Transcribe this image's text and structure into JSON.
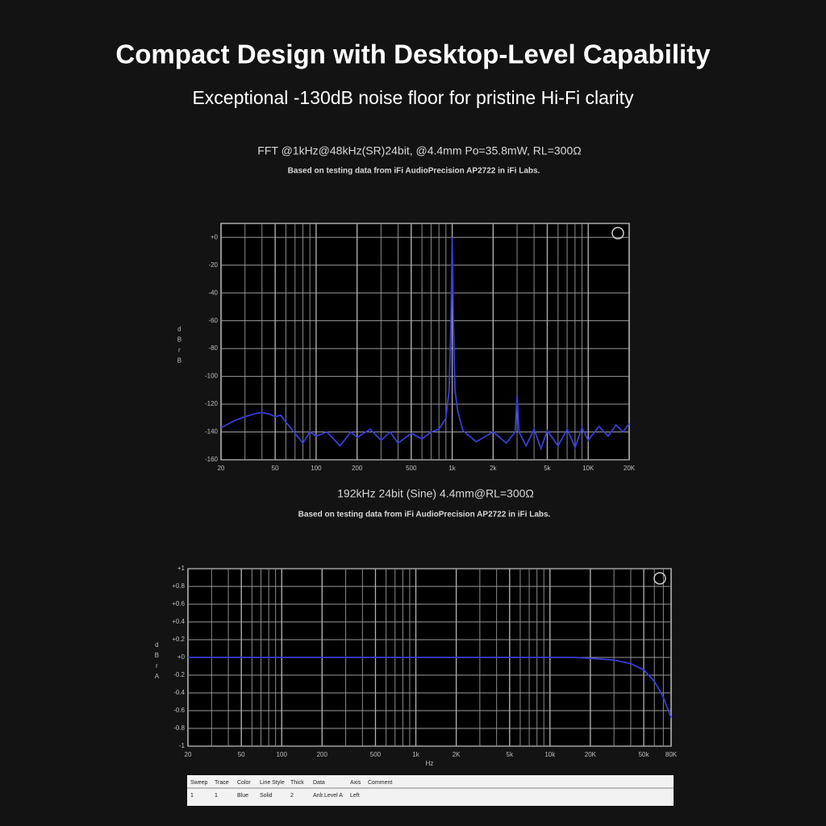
{
  "header": {
    "title": "Compact Design with Desktop-Level Capability",
    "subtitle": "Exceptional -130dB noise floor for pristine Hi-Fi clarity"
  },
  "chart_data": [
    {
      "type": "line",
      "title": "FFT @1kHz@48kHz(SR)24bit, @4.4mm Po=35.8mW, RL=300Ω",
      "subtitle": "Based on testing data from iFi AudioPrecision AP2722 in iFi Labs.",
      "y_label": "dBrB",
      "xscale": "log",
      "grid": true,
      "minor_grid": true,
      "color": "#3b3bd6",
      "xlim": [
        20,
        20000
      ],
      "ylim": [
        -160,
        10
      ],
      "xticks": [
        20,
        50,
        100,
        200,
        500,
        {
          "value": 1000,
          "label": "1k"
        },
        {
          "value": 2000,
          "label": "2k"
        },
        {
          "value": 5000,
          "label": "5k"
        },
        {
          "value": 10000,
          "label": "10K"
        },
        {
          "value": 20000,
          "label": "20K"
        }
      ],
      "yticks": [
        {
          "value": 0,
          "label": "+0"
        },
        -20,
        -40,
        -60,
        -80,
        -100,
        -120,
        -140,
        -160
      ],
      "x": [
        20,
        25,
        30,
        35,
        40,
        45,
        50,
        55,
        60,
        70,
        80,
        90,
        100,
        120,
        150,
        180,
        200,
        250,
        300,
        350,
        400,
        500,
        600,
        700,
        800,
        900,
        950,
        980,
        1000,
        1020,
        1050,
        1100,
        1200,
        1500,
        2000,
        2500,
        2900,
        3000,
        3100,
        3500,
        4000,
        4500,
        5000,
        6000,
        7000,
        8000,
        9000,
        10000,
        12000,
        14000,
        16000,
        18000,
        20000
      ],
      "values": [
        -137,
        -132,
        -129,
        -127,
        -126,
        -127,
        -129,
        -128,
        -133,
        -141,
        -148,
        -140,
        -143,
        -140,
        -150,
        -140,
        -144,
        -138,
        -146,
        -140,
        -148,
        -141,
        -145,
        -140,
        -138,
        -130,
        -110,
        -60,
        0,
        -60,
        -110,
        -125,
        -139,
        -147,
        -140,
        -148,
        -140,
        -114,
        -140,
        -150,
        -138,
        -152,
        -139,
        -150,
        -138,
        -151,
        -137,
        -146,
        -136,
        -143,
        -135,
        -140,
        -134
      ]
    },
    {
      "type": "line",
      "title": "192kHz 24bit (Sine) 4.4mm@RL=300Ω",
      "subtitle": "Based on testing data from iFi AudioPrecision AP2722 in iFi Labs.",
      "y_label": "dBrA",
      "x_label": "Hz",
      "xscale": "log",
      "grid": true,
      "minor_grid": true,
      "color": "#3b3bd6",
      "xlim": [
        20,
        80000
      ],
      "ylim": [
        -1,
        1
      ],
      "xticks": [
        20,
        50,
        100,
        200,
        500,
        {
          "value": 1000,
          "label": "1k"
        },
        {
          "value": 2000,
          "label": "2K"
        },
        {
          "value": 5000,
          "label": "5k"
        },
        {
          "value": 10000,
          "label": "10k"
        },
        {
          "value": 20000,
          "label": "20K"
        },
        {
          "value": 50000,
          "label": "50k"
        },
        {
          "value": 80000,
          "label": "80K"
        }
      ],
      "yticks": [
        {
          "value": 1,
          "label": "+1"
        },
        {
          "value": 0.8,
          "label": "+0.8"
        },
        {
          "value": 0.6,
          "label": "+0.6"
        },
        {
          "value": 0.4,
          "label": "+0.4"
        },
        {
          "value": 0.2,
          "label": "+0.2"
        },
        {
          "value": 0,
          "label": "+0"
        },
        -0.2,
        -0.4,
        -0.6,
        -0.8,
        -1
      ],
      "x": [
        20,
        50,
        100,
        200,
        500,
        1000,
        2000,
        5000,
        10000,
        15000,
        20000,
        25000,
        30000,
        40000,
        50000,
        60000,
        70000,
        80000
      ],
      "values": [
        0,
        0,
        0,
        0,
        0,
        0,
        0,
        0,
        0,
        0,
        -0.01,
        -0.02,
        -0.03,
        -0.07,
        -0.14,
        -0.27,
        -0.45,
        -0.68
      ]
    }
  ],
  "table": {
    "columns": [
      "Sweep",
      "Trace",
      "Color",
      "Line Style",
      "Thick",
      "Data",
      "Axis",
      "Comment"
    ],
    "rows": [
      [
        "1",
        "1",
        "Blue",
        "Solid",
        "2",
        "Anlr.Level A",
        "Left",
        ""
      ]
    ]
  }
}
